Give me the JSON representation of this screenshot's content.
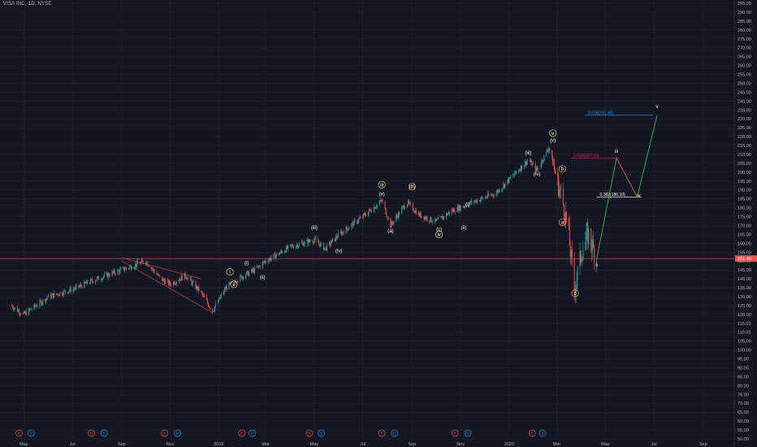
{
  "header": {
    "title": "VISA INC, 1D, NYSE"
  },
  "colors": {
    "background": "#131722",
    "grid": "#1f2331",
    "up": "#26a69a",
    "down": "#ef5350",
    "price_line": "#ef5350",
    "wave_label": "#ffffff",
    "wave_label_orange": "#f0a93b",
    "wave_label_yellow": "#e8d36b",
    "projection_green": "#4caf50",
    "projection_red": "#ef5350",
    "fib_blue": "#2196f3",
    "fib_pink": "#e91e63"
  },
  "chart_data": {
    "type": "candlestick",
    "symbol": "VISA INC",
    "interval": "1D",
    "exchange": "NYSE",
    "ylim": [
      50,
      295
    ],
    "y_ticks": [
      50,
      55,
      60,
      65,
      70,
      75,
      80,
      85,
      90,
      95,
      100,
      105,
      110,
      115,
      120,
      125,
      130,
      135,
      140,
      145,
      150,
      155,
      160,
      165,
      170,
      175,
      180,
      185,
      190,
      195,
      200,
      205,
      210,
      215,
      220,
      225,
      230,
      235,
      240,
      245,
      250,
      255,
      260,
      265,
      270,
      275,
      280,
      285,
      290,
      295
    ],
    "x_ticks": [
      "May",
      "Jul",
      "Sep",
      "Nov",
      "2019",
      "Mar",
      "May",
      "Jul",
      "Sep",
      "Nov",
      "2020",
      "Mar",
      "May",
      "Jul",
      "Sep"
    ],
    "current_price": {
      "label": "151.40",
      "value": 151.4
    },
    "price_path": [
      [
        "2018-04-15",
        125
      ],
      [
        "2018-05-01",
        120
      ],
      [
        "2018-06-01",
        130
      ],
      [
        "2018-07-01",
        134
      ],
      [
        "2018-08-01",
        140
      ],
      [
        "2018-09-01",
        145
      ],
      [
        "2018-10-01",
        150
      ],
      [
        "2018-10-20",
        140
      ],
      [
        "2018-11-01",
        137
      ],
      [
        "2018-11-20",
        142
      ],
      [
        "2018-12-10",
        132
      ],
      [
        "2018-12-24",
        122
      ],
      [
        "2019-01-10",
        135
      ],
      [
        "2019-01-25",
        140
      ],
      [
        "2019-02-15",
        145
      ],
      [
        "2019-03-01",
        150
      ],
      [
        "2019-04-01",
        158
      ],
      [
        "2019-05-01",
        162
      ],
      [
        "2019-05-15",
        157
      ],
      [
        "2019-06-01",
        165
      ],
      [
        "2019-07-01",
        175
      ],
      [
        "2019-07-25",
        184
      ],
      [
        "2019-08-05",
        170
      ],
      [
        "2019-08-25",
        183
      ],
      [
        "2019-09-10",
        176
      ],
      [
        "2019-10-01",
        172
      ],
      [
        "2019-10-20",
        178
      ],
      [
        "2019-11-15",
        183
      ],
      [
        "2019-12-15",
        188
      ],
      [
        "2020-01-10",
        200
      ],
      [
        "2020-01-25",
        207
      ],
      [
        "2020-02-05",
        201
      ],
      [
        "2020-02-20",
        214
      ],
      [
        "2020-03-01",
        196
      ],
      [
        "2020-03-10",
        180
      ],
      [
        "2020-03-15",
        168
      ],
      [
        "2020-03-23",
        134
      ],
      [
        "2020-04-01",
        155
      ],
      [
        "2020-04-10",
        165
      ],
      [
        "2020-04-20",
        151
      ]
    ],
    "wedge_lines": [
      [
        [
          "2018-09-01",
          152
        ],
        [
          "2018-12-10",
          140
        ]
      ],
      [
        [
          "2018-09-01",
          150
        ],
        [
          "2018-12-24",
          121
        ]
      ]
    ],
    "projection": {
      "points": [
        [
          "2020-04-20",
          151
        ],
        [
          "2020-05-15",
          208
        ],
        [
          "2020-06-10",
          186
        ],
        [
          "2020-07-05",
          232
        ]
      ]
    },
    "fib_levels": [
      {
        "label": "0.618(231.98)",
        "value": 232,
        "color_key": "fib_blue",
        "x0": "2020-04-05",
        "x1": "2020-06-30"
      },
      {
        "label": "1.618(207.93)",
        "value": 208,
        "color_key": "fib_pink",
        "x0": "2020-03-18",
        "x1": "2020-05-18"
      },
      {
        "label": "0.382(186.10)",
        "value": 186,
        "color_key": "wave_label",
        "x0": "2020-04-20",
        "x1": "2020-06-15"
      }
    ],
    "wave_labels": [
      {
        "text": "i",
        "date": "2019-01-15",
        "value": 143,
        "circled": true,
        "color_key": "wave_label_yellow"
      },
      {
        "text": "(i)",
        "date": "2019-02-05",
        "value": 148,
        "circled": false,
        "color_key": "wave_label"
      },
      {
        "text": "(ii)",
        "date": "2019-02-25",
        "value": 140,
        "circled": false,
        "color_key": "wave_label"
      },
      {
        "text": "ii",
        "date": "2019-01-20",
        "value": 136,
        "circled": true,
        "color_key": "wave_label_yellow"
      },
      {
        "text": "(iii)",
        "date": "2019-05-01",
        "value": 168,
        "circled": false,
        "color_key": "wave_label"
      },
      {
        "text": "(iv)",
        "date": "2019-06-01",
        "value": 155,
        "circled": false,
        "color_key": "wave_label"
      },
      {
        "text": "iii",
        "date": "2019-07-25",
        "value": 192,
        "circled": true,
        "color_key": "wave_label_yellow"
      },
      {
        "text": "(v)",
        "date": "2019-07-25",
        "value": 187,
        "circled": false,
        "color_key": "wave_label"
      },
      {
        "text": "(a)",
        "date": "2019-08-05",
        "value": 166,
        "circled": false,
        "color_key": "wave_label_orange"
      },
      {
        "text": "(b)",
        "date": "2019-09-01",
        "value": 191,
        "circled": true,
        "color_key": "wave_label_orange"
      },
      {
        "text": "(c)",
        "date": "2019-10-05",
        "value": 167,
        "circled": false,
        "color_key": "wave_label"
      },
      {
        "text": "iv",
        "date": "2019-10-05",
        "value": 164,
        "circled": true,
        "color_key": "wave_label_yellow"
      },
      {
        "text": "(i)",
        "date": "2019-11-10",
        "value": 181,
        "circled": false,
        "color_key": "wave_label"
      },
      {
        "text": "(ii)",
        "date": "2019-11-05",
        "value": 168,
        "circled": false,
        "color_key": "wave_label"
      },
      {
        "text": "(iii)",
        "date": "2020-01-25",
        "value": 210,
        "circled": false,
        "color_key": "wave_label"
      },
      {
        "text": "(iv)",
        "date": "2020-02-05",
        "value": 198,
        "circled": false,
        "color_key": "wave_label"
      },
      {
        "text": "v",
        "date": "2020-02-25",
        "value": 221,
        "circled": true,
        "color_key": "wave_label_yellow"
      },
      {
        "text": "(v)",
        "date": "2020-02-25",
        "value": 217,
        "circled": false,
        "color_key": "wave_label"
      },
      {
        "text": "b",
        "date": "2020-03-08",
        "value": 201,
        "circled": true,
        "color_key": "wave_label_orange"
      },
      {
        "text": "a",
        "date": "2020-03-08",
        "value": 171,
        "circled": true,
        "color_key": "wave_label_orange"
      },
      {
        "text": "c",
        "date": "2020-03-24",
        "value": 131,
        "circled": true,
        "color_key": "wave_label_orange"
      },
      {
        "text": "i",
        "date": "2020-04-08",
        "value": 170,
        "circled": false,
        "color_key": "wave_label"
      },
      {
        "text": "ii",
        "date": "2020-04-20",
        "value": 147,
        "circled": false,
        "color_key": "wave_label"
      },
      {
        "text": "iii",
        "date": "2020-05-15",
        "value": 211,
        "circled": false,
        "color_key": "wave_label"
      },
      {
        "text": "iv",
        "date": "2020-06-12",
        "value": 186,
        "circled": false,
        "color_key": "wave_label"
      },
      {
        "text": "v",
        "date": "2020-07-05",
        "value": 236,
        "circled": false,
        "color_key": "wave_label"
      }
    ],
    "event_markers": [
      {
        "type": "E",
        "date": "2018-04-25"
      },
      {
        "type": "D",
        "date": "2018-05-10"
      },
      {
        "type": "E",
        "date": "2018-07-25"
      },
      {
        "type": "D",
        "date": "2018-08-10"
      },
      {
        "type": "E",
        "date": "2018-10-25"
      },
      {
        "type": "D",
        "date": "2018-11-10"
      },
      {
        "type": "E",
        "date": "2019-01-30"
      },
      {
        "type": "D",
        "date": "2019-02-12"
      },
      {
        "type": "E",
        "date": "2019-04-25"
      },
      {
        "type": "D",
        "date": "2019-05-10"
      },
      {
        "type": "E",
        "date": "2019-07-25"
      },
      {
        "type": "D",
        "date": "2019-08-10"
      },
      {
        "type": "E",
        "date": "2019-10-25"
      },
      {
        "type": "D",
        "date": "2019-11-10"
      },
      {
        "type": "E",
        "date": "2020-01-30"
      },
      {
        "type": "D",
        "date": "2020-02-12"
      }
    ]
  }
}
